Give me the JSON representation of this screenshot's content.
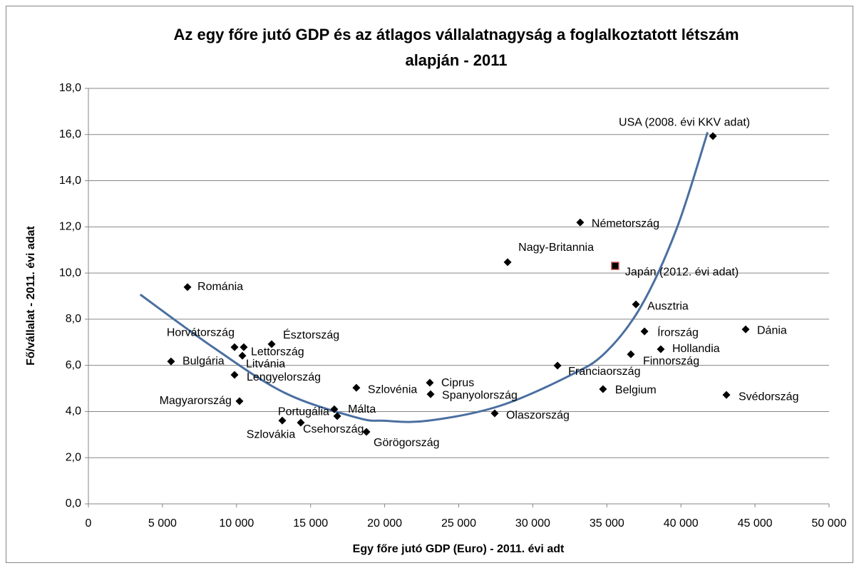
{
  "chart_data": {
    "type": "scatter",
    "title": [
      "Az egy főre jutó GDP és az átlagos vállalatnagyság a foglalkoztatott létszám",
      "alapján - 2011"
    ],
    "x_label": "Egy főre jutó GDP (Euro) - 2011. évi adt",
    "y_label": "Fő/vállalat - 2011. évi adat",
    "xlim": [
      0,
      50000
    ],
    "ylim": [
      0,
      18
    ],
    "xticks": [
      0,
      {
        "value": 5000,
        "label": "5 000"
      },
      {
        "value": 10000,
        "label": "10 000"
      },
      {
        "value": 15000,
        "label": "15 000"
      },
      {
        "value": 20000,
        "label": "20 000"
      },
      {
        "value": 25000,
        "label": "25 000"
      },
      {
        "value": 30000,
        "label": "30 000"
      },
      {
        "value": 35000,
        "label": "35 000"
      },
      {
        "value": 40000,
        "label": "40 000"
      },
      {
        "value": 45000,
        "label": "45 000"
      },
      {
        "value": 50000,
        "label": "50 000"
      }
    ],
    "yticks": [
      {
        "value": 0,
        "label": "0,0"
      },
      {
        "value": 2,
        "label": "2,0"
      },
      {
        "value": 4,
        "label": "4,0"
      },
      {
        "value": 6,
        "label": "6,0"
      },
      {
        "value": 8,
        "label": "8,0"
      },
      {
        "value": 10,
        "label": "10,0"
      },
      {
        "value": 12,
        "label": "12,0"
      },
      {
        "value": 14,
        "label": "14,0"
      },
      {
        "value": 16,
        "label": "16,0"
      },
      {
        "value": 18,
        "label": "18,0"
      }
    ],
    "grid": true,
    "series": [
      {
        "color": "#000000",
        "marker": "diamond",
        "labels": [
          "Románia",
          "Horvátország",
          "Lettország",
          "Litvánia",
          "Észtország",
          "Bulgária",
          "Lengyelország",
          "Magyarország",
          "Portugália",
          "Málta",
          "Szlovákia",
          "Csehország",
          "Görögország",
          "Szlovénia",
          "Ciprus",
          "Spanyolország",
          "Olaszország",
          "Nagy-Britannia",
          "Németország",
          "Ausztria",
          "Írország",
          "Dánia",
          "Hollandia",
          "Finnország",
          "Franciaország",
          "Belgium",
          "Svédország",
          "USA (2008. évi KKV adat)"
        ],
        "x": [
          6690,
          9865,
          10490,
          10395,
          12370,
          5580,
          9865,
          10200,
          16600,
          16800,
          13090,
          14340,
          18770,
          18090,
          23050,
          23100,
          27430,
          28300,
          33200,
          36960,
          37540,
          44370,
          38640,
          36620,
          31670,
          34740,
          43070,
          42160
        ],
        "values": [
          9.39,
          6.79,
          6.79,
          6.42,
          6.92,
          6.17,
          5.59,
          4.45,
          4.1,
          3.8,
          3.61,
          3.52,
          3.12,
          5.03,
          5.25,
          4.75,
          3.92,
          10.47,
          12.19,
          8.64,
          7.47,
          7.56,
          6.7,
          6.48,
          5.99,
          4.97,
          4.72,
          15.93
        ]
      },
      {
        "color": "#000000",
        "edge_color": "#c0504d",
        "marker": "square",
        "labels": [
          "Japán (2012. évi adat)"
        ],
        "x": [
          35560
        ],
        "values": [
          10.31
        ]
      }
    ],
    "trendline": {
      "color": "#4a6fa0",
      "x": [
        3500,
        8470,
        13280,
        18100,
        20000,
        22900,
        27700,
        32500,
        34900,
        37300,
        39700,
        41800
      ],
      "values": [
        9.07,
        6.76,
        4.8,
        3.74,
        3.6,
        3.6,
        4.23,
        5.56,
        6.55,
        8.55,
        11.9,
        16.1
      ]
    }
  }
}
